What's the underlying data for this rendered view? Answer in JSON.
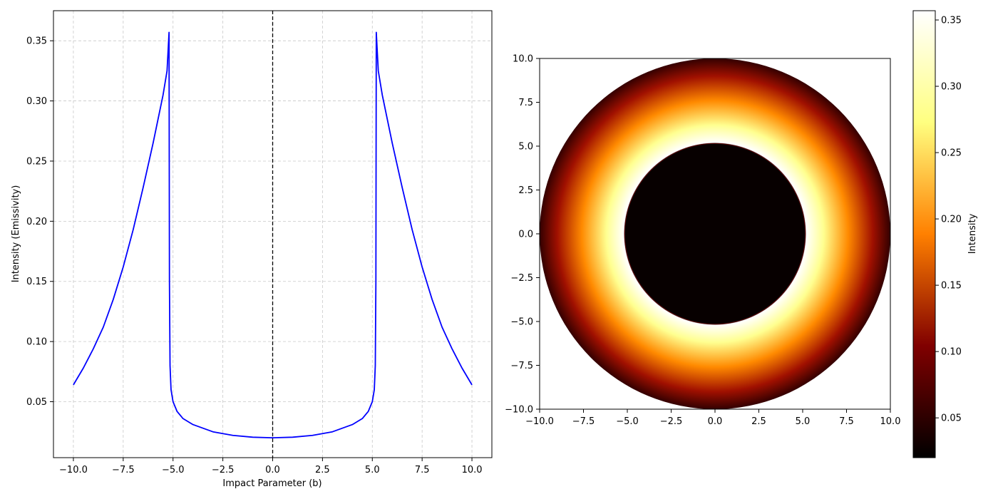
{
  "chart_data": [
    {
      "type": "line",
      "title": "",
      "xlabel": "Impact Parameter (b)",
      "ylabel": "Intensity (Emissivity)",
      "xlim": [
        -11.0,
        11.0
      ],
      "ylim": [
        0.0035,
        0.375
      ],
      "xticks": [
        -10.0,
        -7.5,
        -5.0,
        -2.5,
        0.0,
        2.5,
        5.0,
        7.5,
        10.0
      ],
      "xtick_labels": [
        "−10.0",
        "−7.5",
        "−5.0",
        "−2.5",
        "0.0",
        "2.5",
        "5.0",
        "7.5",
        "10.0"
      ],
      "yticks": [
        0.05,
        0.1,
        0.15,
        0.2,
        0.25,
        0.3,
        0.35
      ],
      "ytick_labels": [
        "0.05",
        "0.10",
        "0.15",
        "0.20",
        "0.25",
        "0.30",
        "0.35"
      ],
      "grid": true,
      "reference_line": {
        "x": 0.0,
        "style": "dashed",
        "color": "#000000"
      },
      "series": [
        {
          "color": "#0000ff",
          "x": [
            0.0,
            1.0,
            2.0,
            3.0,
            4.0,
            4.5,
            4.8,
            5.0,
            5.1,
            5.15,
            5.18,
            5.2,
            5.3,
            5.5,
            6.0,
            6.5,
            7.0,
            7.5,
            8.0,
            8.5,
            9.0,
            9.5,
            10.0
          ],
          "y": [
            0.02,
            0.0205,
            0.022,
            0.025,
            0.031,
            0.036,
            0.042,
            0.05,
            0.06,
            0.08,
            0.15,
            0.357,
            0.325,
            0.305,
            0.265,
            0.228,
            0.193,
            0.162,
            0.135,
            0.112,
            0.094,
            0.078,
            0.064
          ],
          "symmetric_about_zero": true
        }
      ]
    },
    {
      "type": "heatmap",
      "title": "",
      "xlim": [
        -10.0,
        10.0
      ],
      "ylim": [
        -10.0,
        10.0
      ],
      "xticks": [
        -10.0,
        -7.5,
        -5.0,
        -2.5,
        0.0,
        2.5,
        5.0,
        7.5,
        10.0
      ],
      "xtick_labels": [
        "−10.0",
        "−7.5",
        "−5.0",
        "−2.5",
        "0.0",
        "2.5",
        "5.0",
        "7.5",
        "10.0"
      ],
      "yticks": [
        -10.0,
        -7.5,
        -5.0,
        -2.5,
        0.0,
        2.5,
        5.0,
        7.5,
        10.0
      ],
      "ytick_labels": [
        "−10.0",
        "−7.5",
        "−5.0",
        "−2.5",
        "0.0",
        "2.5",
        "5.0",
        "7.5",
        "10.0"
      ],
      "colormap": "afmhot",
      "colormap_stops": [
        "#000000",
        "#800000",
        "#ff8000",
        "#ffff80",
        "#ffffff"
      ],
      "image_radius": 10.0,
      "shadow_radius": 5.15,
      "shadow_color": "#070000",
      "colorbar": {
        "label": "Intensity",
        "vmin": 0.02,
        "vmax": 0.357,
        "ticks": [
          0.05,
          0.1,
          0.15,
          0.2,
          0.25,
          0.3,
          0.35
        ],
        "tick_labels": [
          "0.05",
          "0.10",
          "0.15",
          "0.20",
          "0.25",
          "0.30",
          "0.35"
        ]
      }
    }
  ]
}
